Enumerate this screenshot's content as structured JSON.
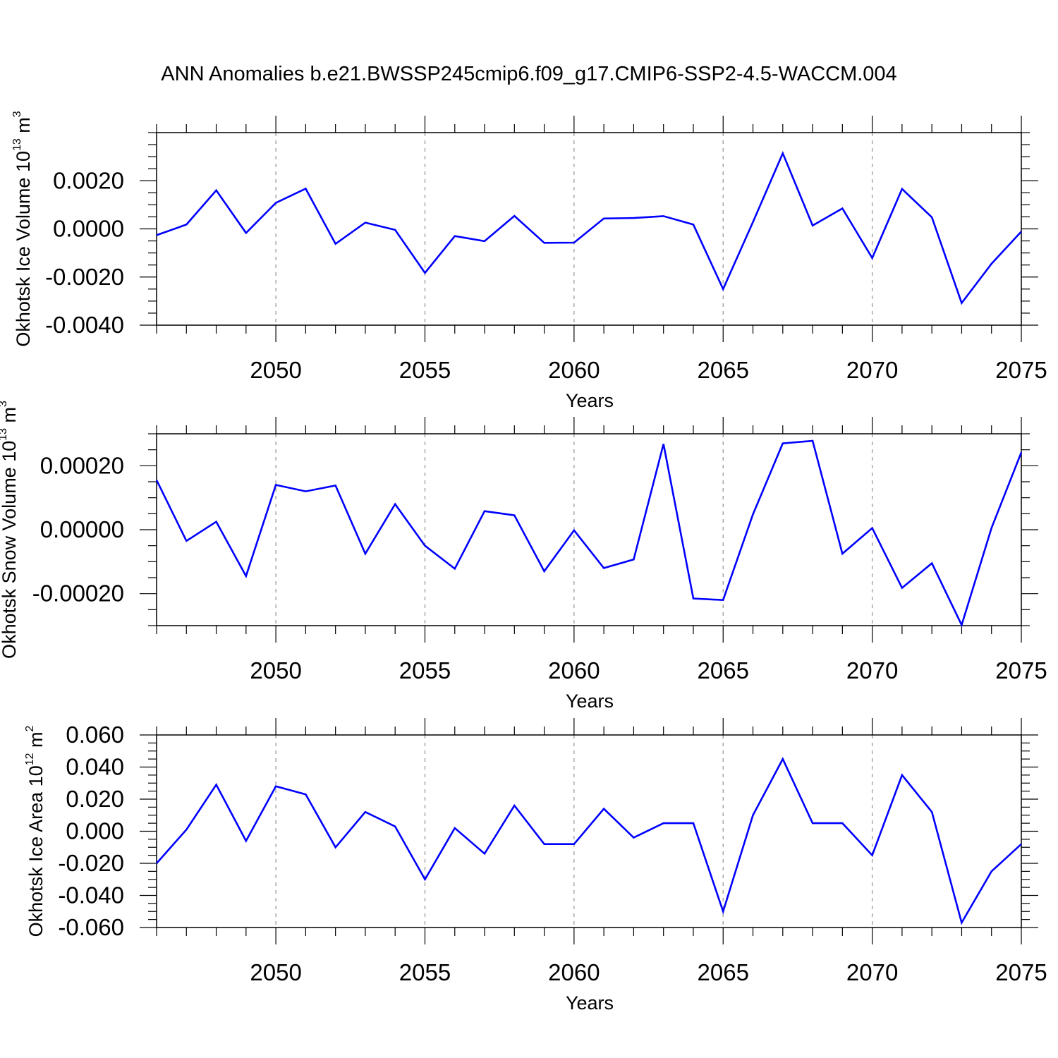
{
  "title": "ANN Anomalies b.e21.BWSSP245cmip6.f09_g17.CMIP6-SSP2-4.5-WACCM.004",
  "colors": {
    "line": "#0000ff",
    "axis": "#000000",
    "grid": "#9a9a9a"
  },
  "chart_data": [
    {
      "type": "line",
      "ylabel_main": "Okhotsk Ice Volume 10",
      "ylabel_exp": "13",
      "ylabel_unit": " m",
      "ylabel_unit_exp": "3",
      "xlabel": "Years",
      "xlim": [
        2046,
        2075
      ],
      "ylim": [
        -0.004,
        0.004
      ],
      "xticks": [
        2050,
        2055,
        2060,
        2065,
        2070,
        2075
      ],
      "xtick_labels": [
        "2050",
        "2055",
        "2060",
        "2065",
        "2070",
        "2075"
      ],
      "yticks": [
        -0.004,
        -0.002,
        0.0,
        0.002
      ],
      "ytick_labels": [
        "-0.0040",
        "-0.0020",
        "0.0000",
        "0.0020"
      ],
      "ystep_minor": 0.0005,
      "grid_x": true,
      "x": [
        2046,
        2047,
        2048,
        2049,
        2050,
        2051,
        2052,
        2053,
        2054,
        2055,
        2056,
        2057,
        2058,
        2059,
        2060,
        2061,
        2062,
        2063,
        2064,
        2065,
        2066,
        2067,
        2068,
        2069,
        2070,
        2071,
        2072,
        2073,
        2074,
        2075
      ],
      "series": [
        {
          "name": "ice_volume",
          "values": [
            -0.00026,
            0.00018,
            0.0016,
            -0.00017,
            0.00108,
            0.00167,
            -0.00062,
            0.00026,
            -4e-05,
            -0.00183,
            -0.0003,
            -0.00051,
            0.00054,
            -0.00058,
            -0.00057,
            0.00043,
            0.00045,
            0.00053,
            0.00018,
            -0.0025,
            0.00028,
            0.00314,
            0.00014,
            0.00085,
            -0.00121,
            0.00166,
            0.00048,
            -0.00308,
            -0.00145,
            -0.00011
          ]
        }
      ]
    },
    {
      "type": "line",
      "ylabel_main": "Okhotsk Snow Volume 10",
      "ylabel_exp": "13",
      "ylabel_unit": " m",
      "ylabel_unit_exp": "3",
      "xlabel": "Years",
      "xlim": [
        2046,
        2075
      ],
      "ylim": [
        -0.0003,
        0.0003
      ],
      "xticks": [
        2050,
        2055,
        2060,
        2065,
        2070,
        2075
      ],
      "xtick_labels": [
        "2050",
        "2055",
        "2060",
        "2065",
        "2070",
        "2075"
      ],
      "yticks": [
        -0.0002,
        0.0,
        0.0002
      ],
      "ytick_labels": [
        "-0.00020",
        "0.00000",
        "0.00020"
      ],
      "ystep_minor": 5e-05,
      "grid_x": true,
      "x": [
        2046,
        2047,
        2048,
        2049,
        2050,
        2051,
        2052,
        2053,
        2054,
        2055,
        2056,
        2057,
        2058,
        2059,
        2060,
        2061,
        2062,
        2063,
        2064,
        2065,
        2066,
        2067,
        2068,
        2069,
        2070,
        2071,
        2072,
        2073,
        2074,
        2075
      ],
      "series": [
        {
          "name": "snow_volume",
          "values": [
            0.000155,
            -3.5e-05,
            2.5e-05,
            -0.000145,
            0.00014,
            0.00012,
            0.000138,
            -7.5e-05,
            8e-05,
            -5e-05,
            -0.000122,
            5.8e-05,
            4.5e-05,
            -0.00013,
            -2e-06,
            -0.00012,
            -9.3e-05,
            0.000268,
            -0.000215,
            -0.00022,
            4.8e-05,
            0.00027,
            0.000278,
            -7.5e-05,
            5e-06,
            -0.000182,
            -0.000105,
            -0.000298,
            5e-06,
            0.000242
          ]
        }
      ]
    },
    {
      "type": "line",
      "ylabel_main": "Okhotsk Ice Area 10",
      "ylabel_exp": "12",
      "ylabel_unit": " m",
      "ylabel_unit_exp": "2",
      "xlabel": "Years",
      "xlim": [
        2046,
        2075
      ],
      "ylim": [
        -0.06,
        0.06
      ],
      "xticks": [
        2050,
        2055,
        2060,
        2065,
        2070,
        2075
      ],
      "xtick_labels": [
        "2050",
        "2055",
        "2060",
        "2065",
        "2070",
        "2075"
      ],
      "yticks": [
        -0.06,
        -0.04,
        -0.02,
        0.0,
        0.02,
        0.04,
        0.06
      ],
      "ytick_labels": [
        "-0.060",
        "-0.040",
        "-0.020",
        "0.000",
        "0.020",
        "0.040",
        "0.060"
      ],
      "ystep_minor": 0.005,
      "grid_x": true,
      "x": [
        2046,
        2047,
        2048,
        2049,
        2050,
        2051,
        2052,
        2053,
        2054,
        2055,
        2056,
        2057,
        2058,
        2059,
        2060,
        2061,
        2062,
        2063,
        2064,
        2065,
        2066,
        2067,
        2068,
        2069,
        2070,
        2071,
        2072,
        2073,
        2074,
        2075
      ],
      "series": [
        {
          "name": "ice_area",
          "values": [
            -0.02,
            0.001,
            0.029,
            -0.006,
            0.028,
            0.023,
            -0.01,
            0.012,
            0.003,
            -0.03,
            0.002,
            -0.014,
            0.016,
            -0.008,
            -0.008,
            0.014,
            -0.004,
            0.005,
            0.005,
            -0.05,
            0.01,
            0.045,
            0.005,
            0.005,
            -0.015,
            0.035,
            0.012,
            -0.057,
            -0.025,
            -0.008
          ]
        }
      ]
    }
  ]
}
